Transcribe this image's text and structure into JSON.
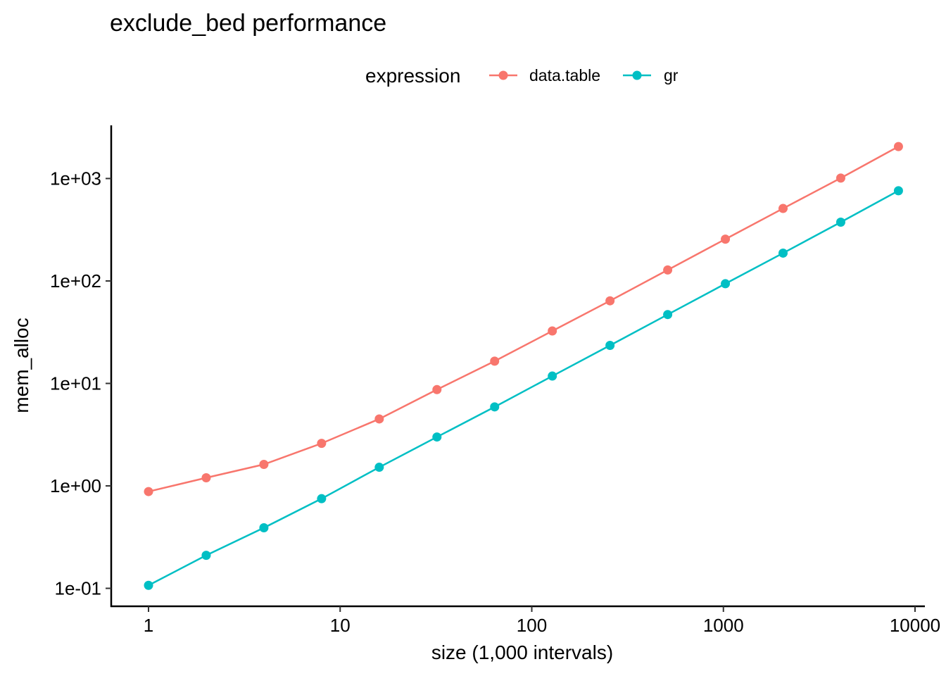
{
  "chart_data": {
    "type": "line",
    "title": "exclude_bed performance",
    "xlabel": "size (1,000 intervals)",
    "ylabel": "mem_alloc",
    "x_scale": "log10",
    "y_scale": "log10",
    "x_ticks": [
      1,
      10,
      100,
      1000,
      10000
    ],
    "x_tick_labels": [
      "1",
      "10",
      "100",
      "1000",
      "10000"
    ],
    "y_ticks": [
      0.1,
      1,
      10,
      100,
      1000
    ],
    "y_tick_labels": [
      "1e-01",
      "1e+00",
      "1e+01",
      "1e+02",
      "1e+03"
    ],
    "legend": {
      "title": "expression",
      "position": "top"
    },
    "grid": false,
    "x": [
      1,
      2,
      4,
      8,
      16,
      32,
      64,
      128,
      256,
      512,
      1024,
      2048,
      4096,
      8192
    ],
    "series": [
      {
        "name": "data.table",
        "color": "#F8766D",
        "values": [
          0.88,
          1.2,
          1.62,
          2.6,
          4.5,
          8.7,
          16.5,
          32.5,
          64,
          128,
          256,
          510,
          1010,
          2050
        ]
      },
      {
        "name": "gr",
        "color": "#00BFC4",
        "values": [
          0.107,
          0.21,
          0.39,
          0.75,
          1.52,
          3.0,
          5.9,
          11.8,
          23.5,
          47,
          94,
          187,
          375,
          760
        ]
      }
    ]
  }
}
